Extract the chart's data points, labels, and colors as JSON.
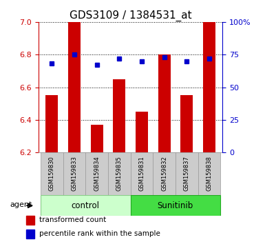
{
  "title": "GDS3109 / 1384531_at",
  "samples": [
    "GSM159830",
    "GSM159833",
    "GSM159834",
    "GSM159835",
    "GSM159831",
    "GSM159832",
    "GSM159837",
    "GSM159838"
  ],
  "transformed_counts": [
    6.55,
    7.0,
    6.37,
    6.65,
    6.45,
    6.8,
    6.55,
    7.0
  ],
  "percentile_ranks": [
    68,
    75,
    67,
    72,
    70,
    73,
    70,
    72
  ],
  "ylim_left": [
    6.2,
    7.0
  ],
  "ylim_right": [
    0,
    100
  ],
  "yticks_left": [
    6.2,
    6.4,
    6.6,
    6.8,
    7.0
  ],
  "yticks_right": [
    0,
    25,
    50,
    75,
    100
  ],
  "yticklabels_right": [
    "0",
    "25",
    "50",
    "75",
    "100%"
  ],
  "groups": [
    {
      "label": "control",
      "indices": [
        0,
        1,
        2,
        3
      ],
      "color": "#ccffcc",
      "edge_color": "#88cc88"
    },
    {
      "label": "Sunitinib",
      "indices": [
        4,
        5,
        6,
        7
      ],
      "color": "#44dd44",
      "edge_color": "#22aa22"
    }
  ],
  "bar_color": "#cc0000",
  "dot_color": "#0000cc",
  "bar_width": 0.55,
  "base_value": 6.2,
  "agent_label": "agent",
  "legend_items": [
    {
      "color": "#cc0000",
      "marker": "s",
      "label": "transformed count"
    },
    {
      "color": "#0000cc",
      "marker": "s",
      "label": "percentile rank within the sample"
    }
  ],
  "background_color": "#ffffff",
  "label_area_color": "#cccccc",
  "title_fontsize": 11,
  "tick_fontsize": 8,
  "sample_fontsize": 6,
  "axis_label_color_left": "#cc0000",
  "axis_label_color_right": "#0000cc"
}
